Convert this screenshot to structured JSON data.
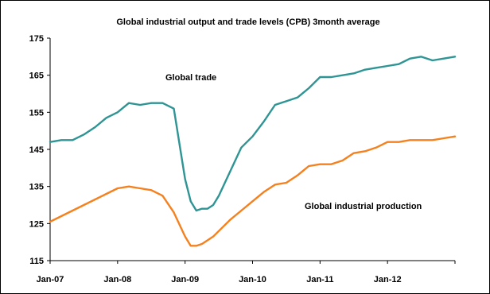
{
  "chart_data": {
    "type": "line",
    "title": "Global industrial output and trade levels (CPB) 3month average",
    "xlabel": "",
    "ylabel": "",
    "ylim": [
      115,
      175
    ],
    "yticks": [
      115,
      125,
      135,
      145,
      155,
      165,
      175
    ],
    "xlim": [
      "2007-01",
      "2013-01"
    ],
    "xticks": [
      {
        "date": "2007-01",
        "label": "Jan-07"
      },
      {
        "date": "2008-01",
        "label": "Jan-08"
      },
      {
        "date": "2009-01",
        "label": "Jan-09"
      },
      {
        "date": "2010-01",
        "label": "Jan-10"
      },
      {
        "date": "2011-01",
        "label": "Jan-11"
      },
      {
        "date": "2012-01",
        "label": "Jan-12"
      }
    ],
    "grid": false,
    "legend": "none",
    "x": [
      "2007-01",
      "2007-03",
      "2007-05",
      "2007-07",
      "2007-09",
      "2007-11",
      "2008-01",
      "2008-03",
      "2008-05",
      "2008-07",
      "2008-09",
      "2008-11",
      "2009-01",
      "2009-02",
      "2009-03",
      "2009-04",
      "2009-05",
      "2009-06",
      "2009-07",
      "2009-09",
      "2009-11",
      "2010-01",
      "2010-03",
      "2010-05",
      "2010-07",
      "2010-09",
      "2010-11",
      "2011-01",
      "2011-03",
      "2011-05",
      "2011-07",
      "2011-09",
      "2011-11",
      "2012-01",
      "2012-03",
      "2012-05",
      "2012-07",
      "2012-09",
      "2012-11",
      "2013-01"
    ],
    "series": [
      {
        "name": "Global trade",
        "color": "#2e9494",
        "values": [
          147.0,
          147.5,
          147.5,
          149.0,
          151.0,
          153.5,
          155.0,
          157.5,
          157.0,
          157.5,
          157.5,
          156.0,
          137.0,
          131.0,
          128.5,
          129.0,
          129.0,
          130.0,
          132.5,
          139.0,
          145.5,
          148.5,
          152.5,
          157.0,
          158.0,
          159.0,
          161.5,
          164.5,
          164.5,
          165.0,
          165.5,
          166.5,
          167.0,
          167.5,
          168.0,
          169.5,
          170.0,
          169.0,
          169.5,
          170.0
        ]
      },
      {
        "name": "Global industrial production",
        "color": "#f5801e",
        "values": [
          125.5,
          127.0,
          128.5,
          130.0,
          131.5,
          133.0,
          134.5,
          135.0,
          134.5,
          134.0,
          132.5,
          128.0,
          121.5,
          119.0,
          119.0,
          119.5,
          120.5,
          121.5,
          123.0,
          126.0,
          128.5,
          131.0,
          133.5,
          135.5,
          136.0,
          138.0,
          140.5,
          141.0,
          141.0,
          142.0,
          144.0,
          144.5,
          145.5,
          147.0,
          147.0,
          147.5,
          147.5,
          147.5,
          148.0,
          148.5
        ]
      }
    ],
    "annotations": [
      {
        "text": "Global trade",
        "series": "Global trade"
      },
      {
        "text": "Global industrial production",
        "series": "Global industrial production"
      }
    ]
  }
}
